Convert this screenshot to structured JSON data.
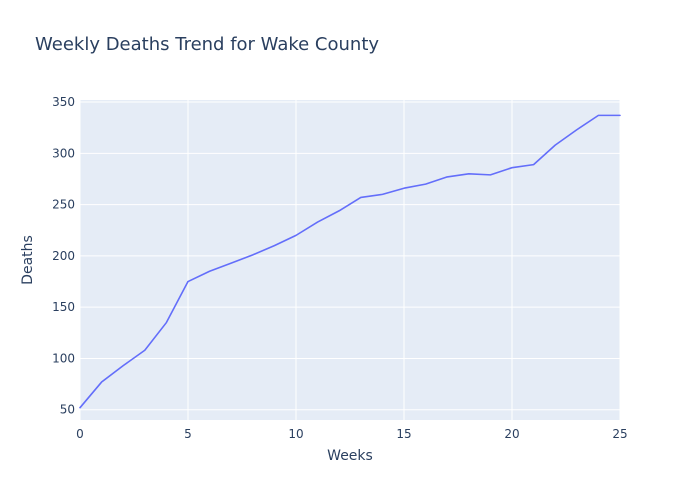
{
  "chart_data": {
    "type": "line",
    "title": "Weekly Deaths Trend for Wake County",
    "xlabel": "Weeks",
    "ylabel": "Deaths",
    "xlim": [
      0,
      25
    ],
    "ylim": [
      40,
      352
    ],
    "x_ticks": [
      0,
      5,
      10,
      15,
      20,
      25
    ],
    "y_ticks": [
      50,
      100,
      150,
      200,
      250,
      300,
      350
    ],
    "grid": true,
    "legend": "none",
    "colors": {
      "plot_background": "#e5ecf6",
      "line": "#636efa",
      "text": "#2a3f5f",
      "grid": "#ffffff"
    },
    "series": [
      {
        "x": [
          0,
          1,
          2,
          3,
          4,
          5,
          6,
          7,
          8,
          9,
          10,
          11,
          12,
          13,
          14,
          15,
          16,
          17,
          18,
          19,
          20,
          21,
          22,
          23,
          24,
          25
        ],
        "values": [
          52,
          77,
          93,
          108,
          135,
          175,
          185,
          193,
          201,
          210,
          220,
          233,
          244,
          257,
          260,
          266,
          270,
          277,
          280,
          279,
          286,
          289,
          308,
          323,
          337,
          337
        ]
      }
    ]
  }
}
